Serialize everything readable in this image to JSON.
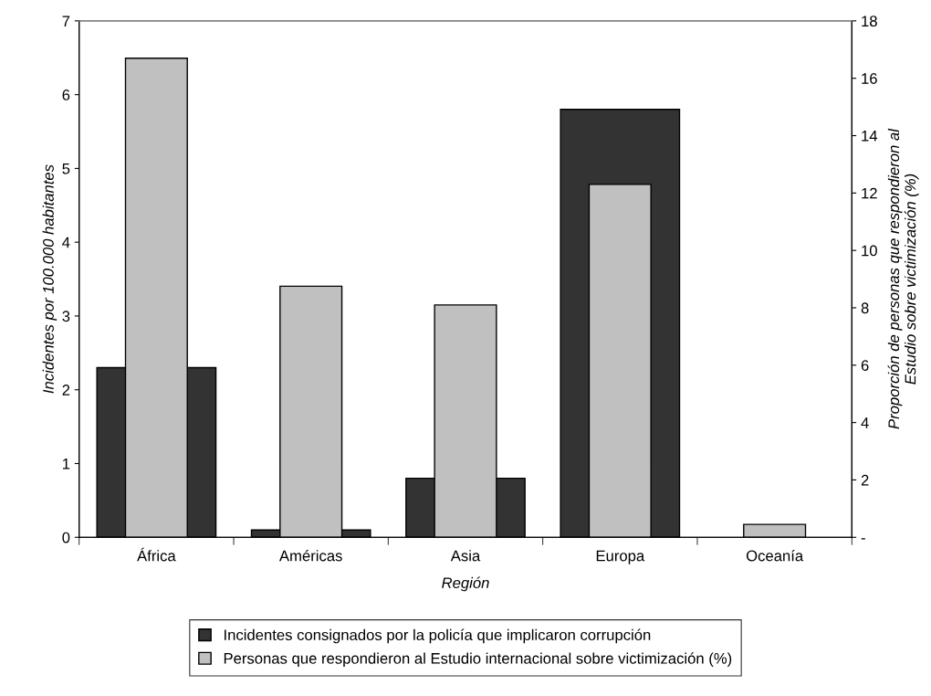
{
  "chart_data": {
    "type": "bar",
    "xlabel": "Región",
    "ylabel": "Incidentes por 100.000 habitantes",
    "y2label": "Proporción de personas que respondieron al\nEstudio sobre victimización (%)",
    "categories": [
      "África",
      "Américas",
      "Asia",
      "Europa",
      "Oceanía"
    ],
    "series": [
      {
        "name": "Incidentes consignados por la policía que implicaron corrupción",
        "color": "#333333",
        "values": [
          2.3,
          0.1,
          0.8,
          5.8,
          null
        ]
      },
      {
        "name": "Personas que respondieron al Estudio internacional sobre victimización (%)",
        "color": "#c0c0c0",
        "values": [
          16.7,
          8.75,
          8.1,
          12.3,
          0.45
        ],
        "axis": "y2"
      }
    ],
    "ylim": [
      0,
      7
    ],
    "yticks": [
      0,
      1,
      2,
      3,
      4,
      5,
      6,
      7
    ],
    "y2lim": [
      0,
      18
    ],
    "y2ticks": [
      {
        "value": 0,
        "label": "-"
      },
      2,
      4,
      6,
      8,
      10,
      12,
      14,
      16,
      18
    ],
    "grid": false,
    "legend": "bottom"
  }
}
